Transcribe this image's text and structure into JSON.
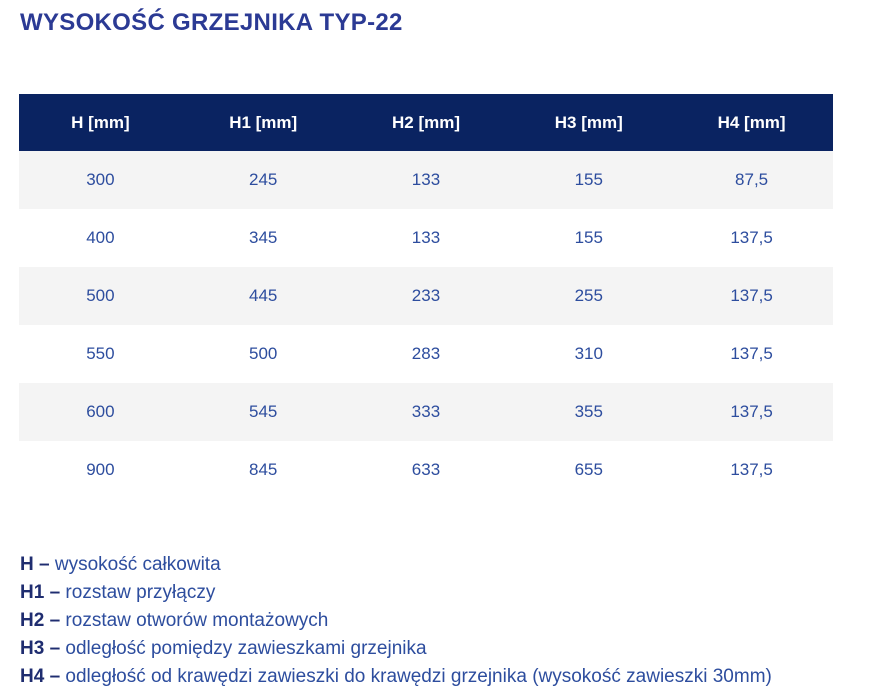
{
  "title": "WYSOKOŚĆ GRZEJNIKA TYP-22",
  "table": {
    "headers": [
      "H [mm]",
      "H1 [mm]",
      "H2 [mm]",
      "H3 [mm]",
      "H4 [mm]"
    ],
    "rows": [
      [
        "300",
        "245",
        "133",
        "155",
        "87,5"
      ],
      [
        "400",
        "345",
        "133",
        "155",
        "137,5"
      ],
      [
        "500",
        "445",
        "233",
        "255",
        "137,5"
      ],
      [
        "550",
        "500",
        "283",
        "310",
        "137,5"
      ],
      [
        "600",
        "545",
        "333",
        "355",
        "137,5"
      ],
      [
        "900",
        "845",
        "633",
        "655",
        "137,5"
      ]
    ]
  },
  "legend": [
    {
      "term": "H –",
      "definition": "wysokość całkowita"
    },
    {
      "term": "H1 –",
      "definition": "rozstaw przyłączy"
    },
    {
      "term": "H2 –",
      "definition": "rozstaw otworów montażowych"
    },
    {
      "term": "H3 –",
      "definition": "odległość pomiędzy zawieszkami grzejnika"
    },
    {
      "term": "H4 –",
      "definition": "odległość od krawędzi zawieszki do krawędzi grzejnika (wysokość zawieszki 30mm)"
    }
  ],
  "colors": {
    "header_bg": "#0a2361",
    "header_text": "#ffffff",
    "cell_text": "#2d4d9e",
    "row_alt_bg": "#f4f4f4",
    "title_color": "#2b3a94",
    "legend_term_color": "#1f2d70"
  }
}
